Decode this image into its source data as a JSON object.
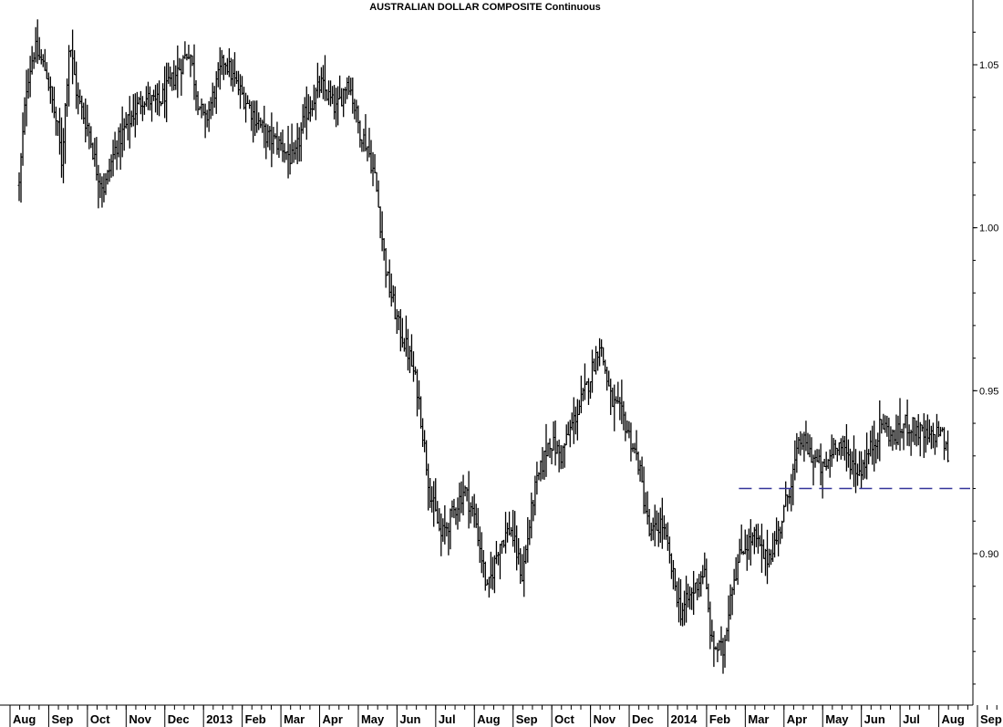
{
  "chart_data": {
    "type": "ohlc",
    "title": "AUSTRALIAN DOLLAR COMPOSITE Continuous",
    "y_ticks": [
      "1.05",
      "1.00",
      "0.95",
      "0.90"
    ],
    "ylim": [
      0.86,
      1.07
    ],
    "x_tick_labels": [
      "Aug",
      "Sep",
      "Oct",
      "Nov",
      "Dec",
      "2013",
      "Feb",
      "Mar",
      "Apr",
      "May",
      "Jun",
      "Jul",
      "Aug",
      "Sep",
      "Oct",
      "Nov",
      "Dec",
      "2014",
      "Feb",
      "Mar",
      "Apr",
      "May",
      "Jun",
      "Jul",
      "Aug",
      "Sep"
    ],
    "x_tick_months": [
      0,
      1,
      2,
      3,
      4,
      5,
      6,
      7,
      8,
      9,
      10,
      11,
      12,
      13,
      14,
      15,
      16,
      17,
      18,
      19,
      20,
      21,
      22,
      23,
      24,
      25
    ],
    "price_path": [
      [
        0,
        1.013
      ],
      [
        0.2,
        1.045
      ],
      [
        0.4,
        1.055
      ],
      [
        0.7,
        1.048
      ],
      [
        1.0,
        1.03
      ],
      [
        1.1,
        1.02
      ],
      [
        1.3,
        1.058
      ],
      [
        1.5,
        1.04
      ],
      [
        1.8,
        1.03
      ],
      [
        2.0,
        1.018
      ],
      [
        2.2,
        1.012
      ],
      [
        2.5,
        1.025
      ],
      [
        2.8,
        1.032
      ],
      [
        3.2,
        1.04
      ],
      [
        3.6,
        1.038
      ],
      [
        4.0,
        1.046
      ],
      [
        4.4,
        1.055
      ],
      [
        4.6,
        1.04
      ],
      [
        4.8,
        1.032
      ],
      [
        5.0,
        1.04
      ],
      [
        5.3,
        1.052
      ],
      [
        5.6,
        1.044
      ],
      [
        6.0,
        1.036
      ],
      [
        6.4,
        1.028
      ],
      [
        6.8,
        1.025
      ],
      [
        7.1,
        1.02
      ],
      [
        7.4,
        1.035
      ],
      [
        7.8,
        1.044
      ],
      [
        8.2,
        1.036
      ],
      [
        8.5,
        1.046
      ],
      [
        8.8,
        1.03
      ],
      [
        9.0,
        1.025
      ],
      [
        9.2,
        1.015
      ],
      [
        9.5,
        0.985
      ],
      [
        9.8,
        0.97
      ],
      [
        10.1,
        0.96
      ],
      [
        10.3,
        0.95
      ],
      [
        10.6,
        0.92
      ],
      [
        10.9,
        0.905
      ],
      [
        11.2,
        0.912
      ],
      [
        11.5,
        0.92
      ],
      [
        11.8,
        0.91
      ],
      [
        12.1,
        0.888
      ],
      [
        12.4,
        0.903
      ],
      [
        12.7,
        0.908
      ],
      [
        13.0,
        0.893
      ],
      [
        13.3,
        0.918
      ],
      [
        13.7,
        0.935
      ],
      [
        14.0,
        0.93
      ],
      [
        14.3,
        0.94
      ],
      [
        14.7,
        0.952
      ],
      [
        15.0,
        0.965
      ],
      [
        15.3,
        0.947
      ],
      [
        15.6,
        0.942
      ],
      [
        16.0,
        0.928
      ],
      [
        16.3,
        0.905
      ],
      [
        16.6,
        0.91
      ],
      [
        16.9,
        0.893
      ],
      [
        17.1,
        0.882
      ],
      [
        17.4,
        0.888
      ],
      [
        17.7,
        0.895
      ],
      [
        17.9,
        0.872
      ],
      [
        18.2,
        0.87
      ],
      [
        18.4,
        0.89
      ],
      [
        18.7,
        0.902
      ],
      [
        19.0,
        0.905
      ],
      [
        19.3,
        0.898
      ],
      [
        19.6,
        0.905
      ],
      [
        19.9,
        0.92
      ],
      [
        20.2,
        0.935
      ],
      [
        20.5,
        0.93
      ],
      [
        20.8,
        0.925
      ],
      [
        21.1,
        0.935
      ],
      [
        21.4,
        0.93
      ],
      [
        21.7,
        0.925
      ],
      [
        22.0,
        0.932
      ],
      [
        22.3,
        0.94
      ],
      [
        22.6,
        0.935
      ],
      [
        22.9,
        0.94
      ],
      [
        23.2,
        0.938
      ],
      [
        23.5,
        0.935
      ],
      [
        23.8,
        0.938
      ],
      [
        24.0,
        0.93
      ]
    ],
    "bars_per_month": 21,
    "horizontal_line": {
      "y": 0.92,
      "from_month": 18.6,
      "to_month": 25.9,
      "style": "dashed",
      "color": "#333399"
    },
    "bar_color": "#000000",
    "axis_color": "#000000"
  }
}
